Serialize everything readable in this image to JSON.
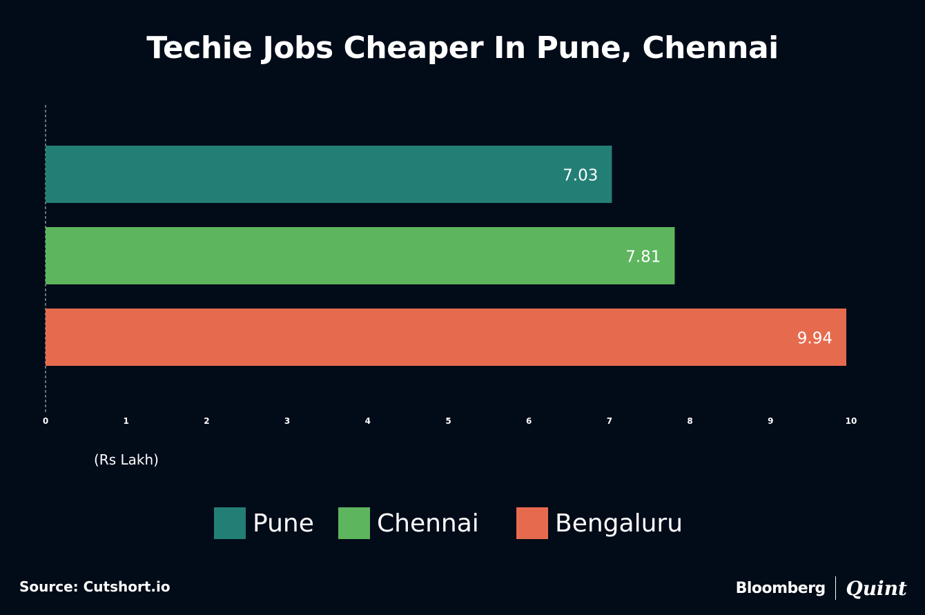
{
  "colors": {
    "background": "#020b18",
    "text": "#ffffff",
    "axis": "#cfd3d8"
  },
  "chart_data": {
    "type": "bar",
    "orientation": "horizontal",
    "title": "Techie Jobs Cheaper In Pune, Chennai",
    "xlabel": "(Rs Lakh)",
    "ylabel": "",
    "xlim": [
      0,
      10
    ],
    "ticks": [
      "0",
      "1",
      "2",
      "3",
      "4",
      "5",
      "6",
      "7",
      "8",
      "9",
      "10"
    ],
    "grid": false,
    "legend_position": "bottom",
    "series": [
      {
        "name": "Pune",
        "value": 7.03,
        "label": "7.03",
        "color": "#237f76"
      },
      {
        "name": "Chennai",
        "value": 7.81,
        "label": "7.81",
        "color": "#5db55e"
      },
      {
        "name": "Bengaluru",
        "value": 9.94,
        "label": "9.94",
        "color": "#e66b4e"
      }
    ]
  },
  "footer": {
    "source": "Source: Cutshort.io",
    "brand_primary": "Bloomberg",
    "brand_secondary": "Quint"
  }
}
